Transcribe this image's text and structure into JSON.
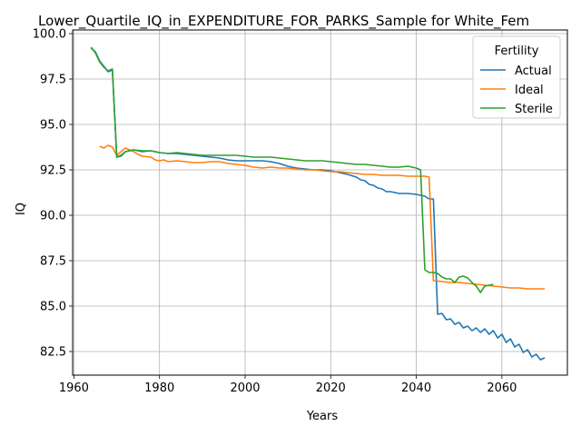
{
  "chart_data": {
    "type": "line",
    "title": "Lower_Quartile_IQ_in_EXPENDITURE_FOR_PARKS_Sample for White_Fem",
    "xlabel": "Years",
    "ylabel": "IQ",
    "xlim": [
      1959.7,
      2075.3
    ],
    "ylim": [
      81.2,
      100.2
    ],
    "xticks": [
      1960,
      1980,
      2000,
      2020,
      2040,
      2060
    ],
    "yticks": [
      82.5,
      85.0,
      87.5,
      90.0,
      92.5,
      95.0,
      97.5,
      100.0
    ],
    "xtick_labels": [
      "1960",
      "1980",
      "2000",
      "2020",
      "2040",
      "2060"
    ],
    "ytick_labels": [
      "82.5",
      "85.0",
      "87.5",
      "90.0",
      "92.5",
      "95.0",
      "97.5",
      "100.0"
    ],
    "grid": true,
    "legend": {
      "title": "Fertility",
      "placement": "top-right"
    },
    "series": [
      {
        "name": "Actual",
        "color": "#1f77b4",
        "points": [
          [
            1964,
            99.2
          ],
          [
            1965,
            99.0
          ],
          [
            1966,
            98.5
          ],
          [
            1967,
            98.2
          ],
          [
            1968,
            97.9
          ],
          [
            1969,
            98.0
          ],
          [
            1970,
            93.2
          ],
          [
            1971,
            93.3
          ],
          [
            1972,
            93.5
          ],
          [
            1974,
            93.6
          ],
          [
            1976,
            93.5
          ],
          [
            1978,
            93.55
          ],
          [
            1980,
            93.45
          ],
          [
            1982,
            93.4
          ],
          [
            1984,
            93.4
          ],
          [
            1986,
            93.35
          ],
          [
            1988,
            93.3
          ],
          [
            1990,
            93.25
          ],
          [
            1992,
            93.2
          ],
          [
            1994,
            93.15
          ],
          [
            1996,
            93.05
          ],
          [
            1998,
            93.0
          ],
          [
            2000,
            93.0
          ],
          [
            2002,
            93.0
          ],
          [
            2004,
            93.0
          ],
          [
            2006,
            92.95
          ],
          [
            2008,
            92.85
          ],
          [
            2010,
            92.7
          ],
          [
            2012,
            92.6
          ],
          [
            2014,
            92.55
          ],
          [
            2016,
            92.5
          ],
          [
            2018,
            92.5
          ],
          [
            2020,
            92.45
          ],
          [
            2022,
            92.35
          ],
          [
            2024,
            92.25
          ],
          [
            2026,
            92.1
          ],
          [
            2027,
            91.95
          ],
          [
            2028,
            91.9
          ],
          [
            2029,
            91.7
          ],
          [
            2030,
            91.65
          ],
          [
            2031,
            91.5
          ],
          [
            2032,
            91.45
          ],
          [
            2033,
            91.3
          ],
          [
            2034,
            91.3
          ],
          [
            2036,
            91.2
          ],
          [
            2038,
            91.2
          ],
          [
            2040,
            91.15
          ],
          [
            2041,
            91.1
          ],
          [
            2042,
            91.05
          ],
          [
            2043,
            90.9
          ],
          [
            2044,
            90.9
          ],
          [
            2045,
            84.55
          ],
          [
            2046,
            84.6
          ],
          [
            2047,
            84.25
          ],
          [
            2048,
            84.3
          ],
          [
            2049,
            84.0
          ],
          [
            2050,
            84.1
          ],
          [
            2051,
            83.8
          ],
          [
            2052,
            83.9
          ],
          [
            2053,
            83.65
          ],
          [
            2054,
            83.8
          ],
          [
            2055,
            83.55
          ],
          [
            2056,
            83.75
          ],
          [
            2057,
            83.45
          ],
          [
            2058,
            83.65
          ],
          [
            2059,
            83.25
          ],
          [
            2060,
            83.45
          ],
          [
            2061,
            83.0
          ],
          [
            2062,
            83.2
          ],
          [
            2063,
            82.75
          ],
          [
            2064,
            82.9
          ],
          [
            2065,
            82.45
          ],
          [
            2066,
            82.6
          ],
          [
            2067,
            82.2
          ],
          [
            2068,
            82.35
          ],
          [
            2069,
            82.05
          ],
          [
            2070,
            82.15
          ]
        ]
      },
      {
        "name": "Ideal",
        "color": "#ff7f0e",
        "points": [
          [
            1966,
            93.8
          ],
          [
            1967,
            93.7
          ],
          [
            1968,
            93.85
          ],
          [
            1969,
            93.75
          ],
          [
            1970,
            93.3
          ],
          [
            1971,
            93.5
          ],
          [
            1972,
            93.7
          ],
          [
            1973,
            93.6
          ],
          [
            1974,
            93.5
          ],
          [
            1975,
            93.35
          ],
          [
            1976,
            93.25
          ],
          [
            1978,
            93.2
          ],
          [
            1979,
            93.05
          ],
          [
            1980,
            93.0
          ],
          [
            1981,
            93.05
          ],
          [
            1982,
            92.95
          ],
          [
            1984,
            93.0
          ],
          [
            1986,
            92.95
          ],
          [
            1988,
            92.9
          ],
          [
            1990,
            92.9
          ],
          [
            1992,
            92.95
          ],
          [
            1994,
            92.95
          ],
          [
            1996,
            92.85
          ],
          [
            1998,
            92.8
          ],
          [
            2000,
            92.75
          ],
          [
            2002,
            92.65
          ],
          [
            2004,
            92.6
          ],
          [
            2006,
            92.65
          ],
          [
            2008,
            92.6
          ],
          [
            2010,
            92.6
          ],
          [
            2012,
            92.55
          ],
          [
            2014,
            92.5
          ],
          [
            2016,
            92.5
          ],
          [
            2018,
            92.45
          ],
          [
            2020,
            92.4
          ],
          [
            2022,
            92.4
          ],
          [
            2024,
            92.35
          ],
          [
            2026,
            92.3
          ],
          [
            2028,
            92.25
          ],
          [
            2030,
            92.25
          ],
          [
            2032,
            92.2
          ],
          [
            2034,
            92.2
          ],
          [
            2036,
            92.2
          ],
          [
            2038,
            92.15
          ],
          [
            2040,
            92.15
          ],
          [
            2042,
            92.15
          ],
          [
            2043,
            92.1
          ],
          [
            2044,
            86.4
          ],
          [
            2046,
            86.35
          ],
          [
            2048,
            86.3
          ],
          [
            2050,
            86.3
          ],
          [
            2052,
            86.25
          ],
          [
            2054,
            86.2
          ],
          [
            2056,
            86.15
          ],
          [
            2058,
            86.1
          ],
          [
            2060,
            86.05
          ],
          [
            2062,
            86.0
          ],
          [
            2064,
            86.0
          ],
          [
            2066,
            85.95
          ],
          [
            2068,
            85.95
          ],
          [
            2070,
            85.95
          ]
        ]
      },
      {
        "name": "Sterile",
        "color": "#2ca02c",
        "points": [
          [
            1964,
            99.25
          ],
          [
            1965,
            98.95
          ],
          [
            1966,
            98.45
          ],
          [
            1967,
            98.15
          ],
          [
            1968,
            97.95
          ],
          [
            1969,
            98.05
          ],
          [
            1970,
            93.2
          ],
          [
            1971,
            93.25
          ],
          [
            1972,
            93.5
          ],
          [
            1974,
            93.6
          ],
          [
            1976,
            93.55
          ],
          [
            1978,
            93.55
          ],
          [
            1980,
            93.45
          ],
          [
            1982,
            93.4
          ],
          [
            1984,
            93.45
          ],
          [
            1986,
            93.4
          ],
          [
            1988,
            93.35
          ],
          [
            1990,
            93.3
          ],
          [
            1992,
            93.3
          ],
          [
            1994,
            93.3
          ],
          [
            1996,
            93.3
          ],
          [
            1998,
            93.3
          ],
          [
            2000,
            93.25
          ],
          [
            2002,
            93.2
          ],
          [
            2004,
            93.2
          ],
          [
            2006,
            93.2
          ],
          [
            2008,
            93.15
          ],
          [
            2010,
            93.1
          ],
          [
            2012,
            93.05
          ],
          [
            2014,
            93.0
          ],
          [
            2016,
            93.0
          ],
          [
            2018,
            93.0
          ],
          [
            2020,
            92.95
          ],
          [
            2022,
            92.9
          ],
          [
            2024,
            92.85
          ],
          [
            2026,
            92.8
          ],
          [
            2028,
            92.8
          ],
          [
            2030,
            92.75
          ],
          [
            2032,
            92.7
          ],
          [
            2034,
            92.65
          ],
          [
            2036,
            92.65
          ],
          [
            2038,
            92.7
          ],
          [
            2040,
            92.6
          ],
          [
            2041,
            92.5
          ],
          [
            2042,
            87.0
          ],
          [
            2043,
            86.85
          ],
          [
            2044,
            86.85
          ],
          [
            2045,
            86.8
          ],
          [
            2046,
            86.6
          ],
          [
            2047,
            86.5
          ],
          [
            2048,
            86.5
          ],
          [
            2049,
            86.3
          ],
          [
            2050,
            86.6
          ],
          [
            2051,
            86.65
          ],
          [
            2052,
            86.55
          ],
          [
            2053,
            86.3
          ],
          [
            2054,
            86.1
          ],
          [
            2055,
            85.75
          ],
          [
            2056,
            86.1
          ],
          [
            2057,
            86.15
          ],
          [
            2058,
            86.2
          ]
        ]
      }
    ]
  }
}
